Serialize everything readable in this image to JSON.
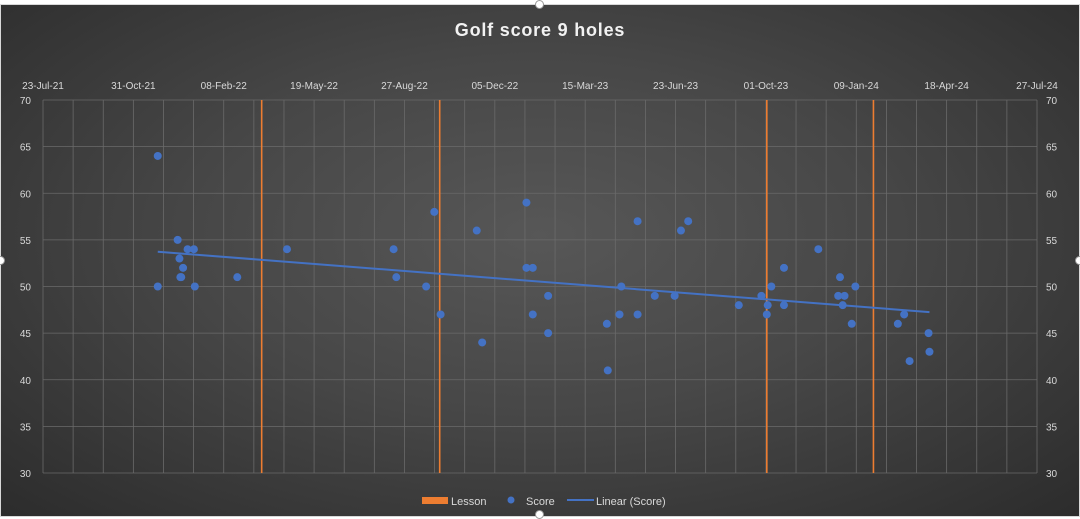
{
  "chart_data": {
    "type": "scatter",
    "title": "Golf score 9 holes",
    "xlim": [
      "2021-07-23",
      "2024-07-27"
    ],
    "ylim": [
      30,
      70
    ],
    "x_major_unit_days": 100,
    "y_major_unit": 5,
    "x_tick_labels": [
      "23-Jul-21",
      "31-Oct-21",
      "08-Feb-22",
      "19-May-22",
      "27-Aug-22",
      "05-Dec-22",
      "15-Mar-23",
      "23-Jun-23",
      "01-Oct-23",
      "09-Jan-24",
      "18-Apr-24",
      "27-Jul-24"
    ],
    "y_tick_labels": [
      "30",
      "35",
      "40",
      "45",
      "50",
      "55",
      "60",
      "65",
      "70"
    ],
    "x_axis_position": "top",
    "y_axes": [
      "left",
      "right"
    ],
    "grid": true,
    "legend_position": "bottom",
    "colors": {
      "score": "#4472c4",
      "lesson": "#ed7d31",
      "trend": "#4472c4",
      "background": "#444444"
    },
    "legend": [
      {
        "label": "Lesson",
        "marker": "bar"
      },
      {
        "label": "Score",
        "marker": "circle"
      },
      {
        "label": "Linear (Score)",
        "marker": "line"
      }
    ],
    "lessons": [
      "2022-03-22",
      "2022-10-05",
      "2023-10-02",
      "2024-01-28"
    ],
    "series": [
      {
        "name": "Score",
        "points": [
          [
            "2021-11-27",
            64
          ],
          [
            "2021-11-27",
            50
          ],
          [
            "2021-12-19",
            55
          ],
          [
            "2021-12-21",
            53
          ],
          [
            "2021-12-25",
            52
          ],
          [
            "2021-12-22",
            51
          ],
          [
            "2021-12-23",
            51
          ],
          [
            "2021-12-30",
            54
          ],
          [
            "2022-01-06",
            54
          ],
          [
            "2022-01-07",
            50
          ],
          [
            "2022-02-23",
            51
          ],
          [
            "2022-04-19",
            54
          ],
          [
            "2022-08-15",
            54
          ],
          [
            "2022-08-18",
            51
          ],
          [
            "2022-09-20",
            50
          ],
          [
            "2022-09-29",
            58
          ],
          [
            "2022-10-06",
            47
          ],
          [
            "2022-11-15",
            56
          ],
          [
            "2022-11-21",
            44
          ],
          [
            "2023-01-09",
            59
          ],
          [
            "2023-01-09",
            52
          ],
          [
            "2023-01-16",
            52
          ],
          [
            "2023-01-16",
            47
          ],
          [
            "2023-02-02",
            49
          ],
          [
            "2023-02-02",
            45
          ],
          [
            "2023-04-08",
            46
          ],
          [
            "2023-04-09",
            41
          ],
          [
            "2023-04-22",
            47
          ],
          [
            "2023-04-24",
            50
          ],
          [
            "2023-05-12",
            57
          ],
          [
            "2023-05-12",
            47
          ],
          [
            "2023-05-31",
            49
          ],
          [
            "2023-06-22",
            49
          ],
          [
            "2023-06-29",
            56
          ],
          [
            "2023-07-07",
            57
          ],
          [
            "2023-09-01",
            48
          ],
          [
            "2023-09-26",
            49
          ],
          [
            "2023-10-03",
            48
          ],
          [
            "2023-10-02",
            47
          ],
          [
            "2023-10-07",
            50
          ],
          [
            "2023-10-21",
            52
          ],
          [
            "2023-10-21",
            48
          ],
          [
            "2023-11-28",
            54
          ],
          [
            "2023-12-22",
            51
          ],
          [
            "2023-12-20",
            49
          ],
          [
            "2023-12-27",
            49
          ],
          [
            "2023-12-25",
            48
          ],
          [
            "2024-01-08",
            50
          ],
          [
            "2024-01-04",
            46
          ],
          [
            "2024-02-24",
            46
          ],
          [
            "2024-03-02",
            47
          ],
          [
            "2024-03-08",
            42
          ],
          [
            "2024-03-29",
            45
          ],
          [
            "2024-03-30",
            43
          ]
        ]
      },
      {
        "name": "Linear (Score)",
        "type": "linear-trendline"
      }
    ]
  }
}
